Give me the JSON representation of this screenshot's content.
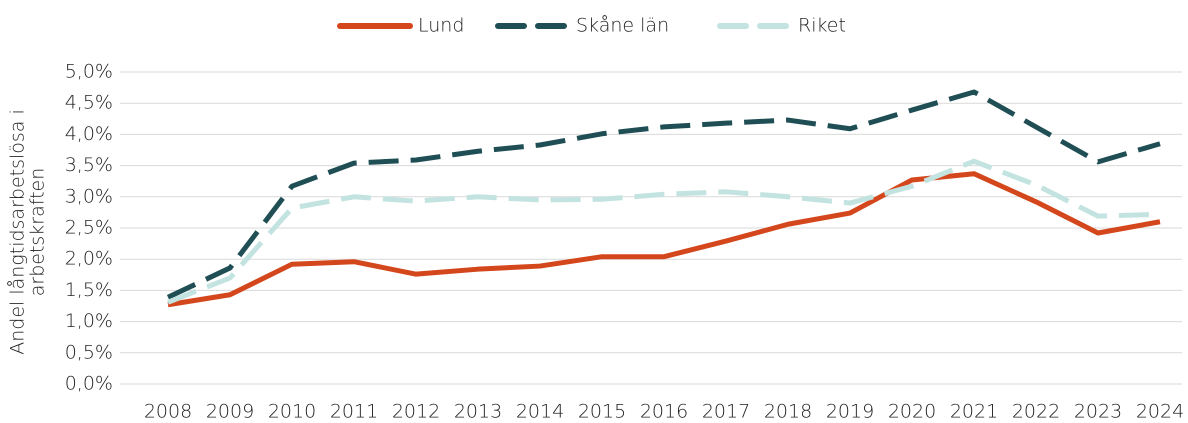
{
  "chart_data": {
    "type": "line",
    "y_label": [
      "Andel långtidsarbetslösa i",
      "arbetskraften"
    ],
    "categories": [
      "2008",
      "2009",
      "2010",
      "2011",
      "2012",
      "2013",
      "2014",
      "2015",
      "2016",
      "2017",
      "2018",
      "2019",
      "2020",
      "2021",
      "2022",
      "2023",
      "2024"
    ],
    "series": [
      {
        "name": "Lund",
        "color": "#d4461c",
        "dashed": false,
        "values": [
          1.27,
          1.43,
          1.92,
          1.96,
          1.76,
          1.84,
          1.89,
          2.04,
          2.04,
          2.29,
          2.56,
          2.74,
          3.27,
          3.37,
          2.92,
          2.42,
          2.6
        ]
      },
      {
        "name": "Skåne län",
        "color": "#1f4e55",
        "dashed": true,
        "values": [
          1.39,
          1.86,
          3.17,
          3.54,
          3.59,
          3.73,
          3.83,
          4.01,
          4.12,
          4.18,
          4.23,
          4.09,
          4.39,
          4.68,
          4.12,
          3.56,
          3.85
        ]
      },
      {
        "name": "Riket",
        "color": "#c2e3e0",
        "dashed": true,
        "values": [
          1.31,
          1.7,
          2.82,
          3.0,
          2.93,
          3.0,
          2.95,
          2.96,
          3.04,
          3.08,
          3.0,
          2.9,
          3.17,
          3.57,
          3.19,
          2.69,
          2.72
        ]
      }
    ],
    "ylim": [
      0,
      5
    ],
    "yticks": [
      {
        "value": 0,
        "label": "0,0%"
      },
      {
        "value": 0.5,
        "label": "0,5%"
      },
      {
        "value": 1,
        "label": "1,0%"
      },
      {
        "value": 1.5,
        "label": "1,5%"
      },
      {
        "value": 2,
        "label": "2,0%"
      },
      {
        "value": 2.5,
        "label": "2,5%"
      },
      {
        "value": 3,
        "label": "3,0%"
      },
      {
        "value": 3.5,
        "label": "3,5%"
      },
      {
        "value": 4,
        "label": "4,0%"
      },
      {
        "value": 4.5,
        "label": "4,5%"
      },
      {
        "value": 5,
        "label": "5,0%"
      }
    ],
    "grid": true,
    "legend": "top"
  }
}
